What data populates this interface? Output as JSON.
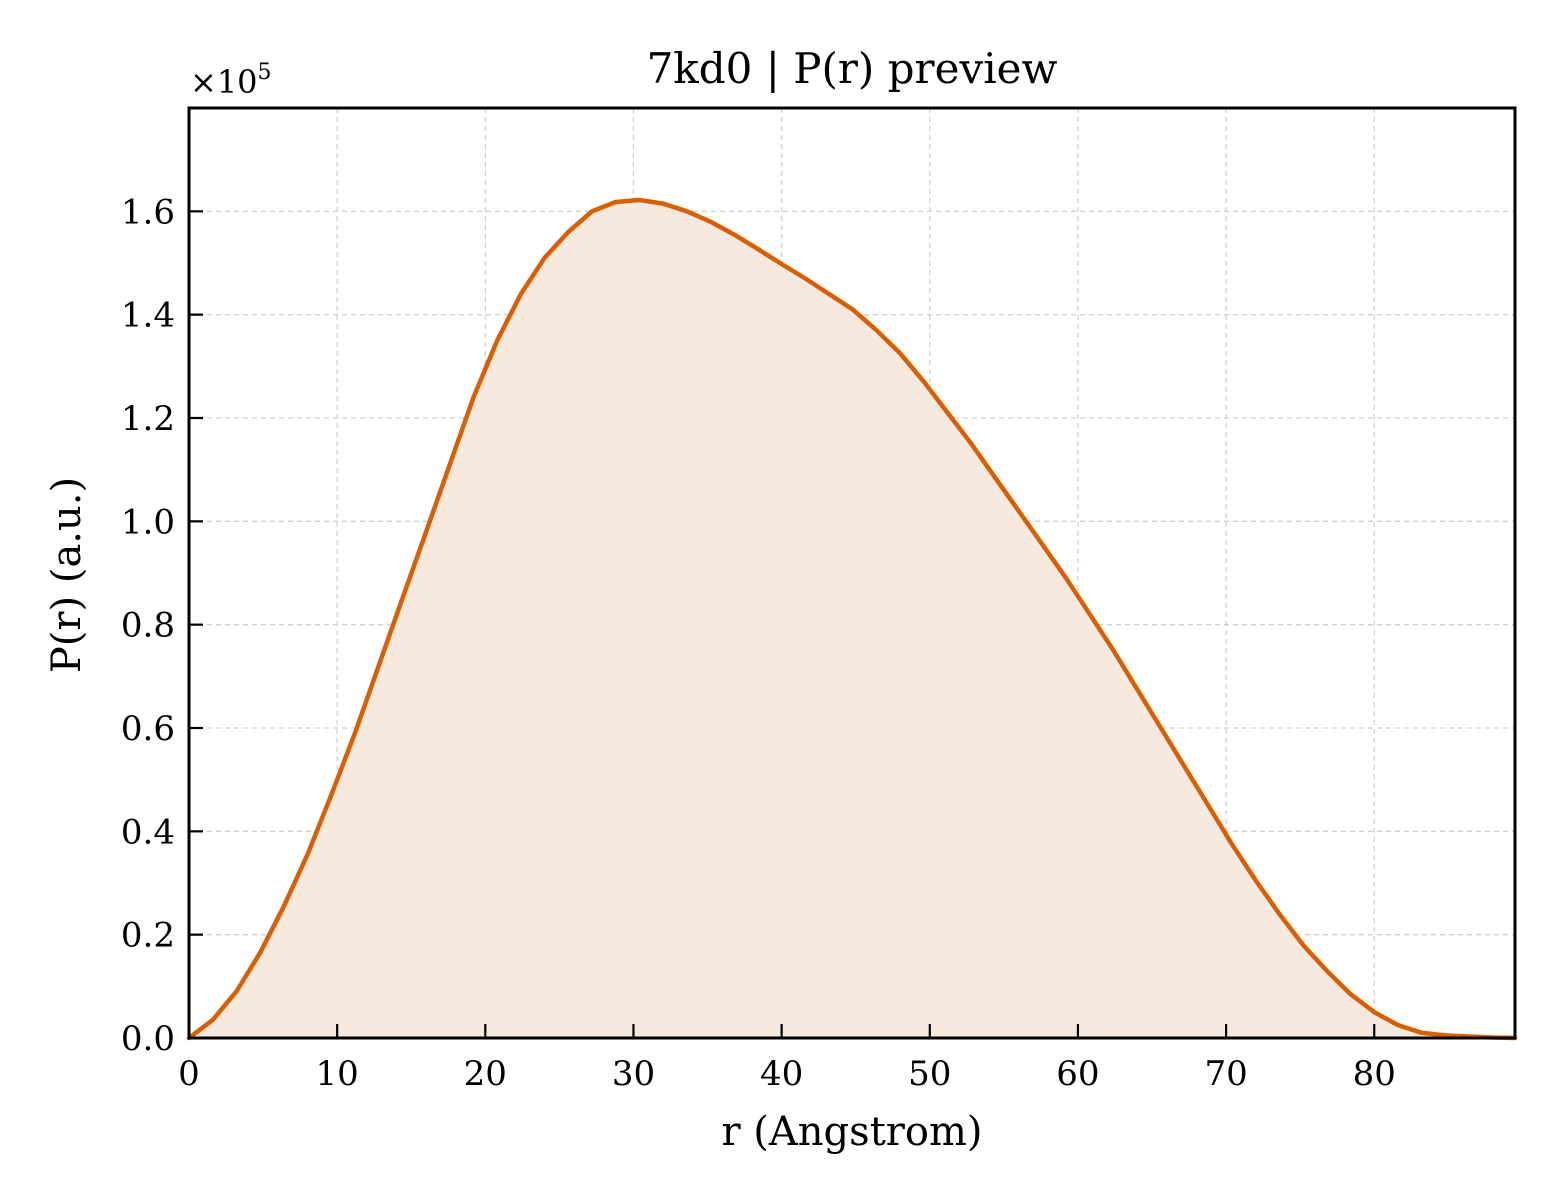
{
  "chart_data": {
    "type": "area",
    "title": "7kd0 | P(r) preview",
    "xlabel": "r (Angstrom)",
    "ylabel": "P(r) (a.u.)",
    "y_multiplier_label": "×10",
    "y_multiplier_exponent": "5",
    "xlim": [
      0,
      89.5
    ],
    "ylim": [
      0,
      1.8
    ],
    "x_ticks": [
      0,
      10,
      20,
      30,
      40,
      50,
      60,
      70,
      80
    ],
    "x_tick_labels": [
      "0",
      "10",
      "20",
      "30",
      "40",
      "50",
      "60",
      "70",
      "80"
    ],
    "y_ticks": [
      0,
      0.2,
      0.4,
      0.6,
      0.8,
      1.0,
      1.2,
      1.4,
      1.6
    ],
    "y_tick_labels": [
      "0.0",
      "0.2",
      "0.4",
      "0.6",
      "0.8",
      "1.0",
      "1.2",
      "1.4",
      "1.6"
    ],
    "grid": true,
    "series": [
      {
        "color": "#d95f02",
        "fill_color": "#f8e9df",
        "x": [
          0,
          1.6,
          3.2,
          4.8,
          6.4,
          8.0,
          9.6,
          11.2,
          12.8,
          14.4,
          16.0,
          17.6,
          19.2,
          20.8,
          22.4,
          24.0,
          25.6,
          27.2,
          28.8,
          30.4,
          32.0,
          33.6,
          35.2,
          36.8,
          38.4,
          40.0,
          41.6,
          43.2,
          44.8,
          46.4,
          48.0,
          49.6,
          51.2,
          52.8,
          54.4,
          56.0,
          57.6,
          59.2,
          60.8,
          62.4,
          64.0,
          65.6,
          67.2,
          68.8,
          70.4,
          72.0,
          73.6,
          75.2,
          76.8,
          78.4,
          80.0,
          81.6,
          83.2,
          84.8,
          86.4,
          88.0,
          89.5
        ],
        "y": [
          0.0,
          0.035,
          0.09,
          0.165,
          0.255,
          0.355,
          0.47,
          0.59,
          0.72,
          0.85,
          0.98,
          1.11,
          1.24,
          1.35,
          1.44,
          1.51,
          1.56,
          1.6,
          1.618,
          1.622,
          1.615,
          1.6,
          1.58,
          1.555,
          1.527,
          1.498,
          1.47,
          1.44,
          1.41,
          1.37,
          1.325,
          1.27,
          1.21,
          1.15,
          1.085,
          1.02,
          0.955,
          0.89,
          0.82,
          0.75,
          0.675,
          0.6,
          0.525,
          0.45,
          0.375,
          0.305,
          0.24,
          0.18,
          0.13,
          0.085,
          0.05,
          0.025,
          0.01,
          0.005,
          0.003,
          0.001,
          0.0
        ]
      }
    ]
  }
}
